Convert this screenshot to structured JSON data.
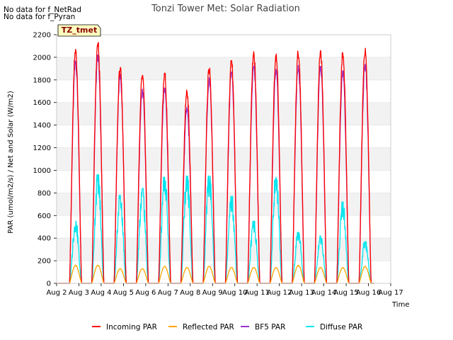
{
  "notices": [
    "No data for f_NetRad",
    "No data for f_Pyran"
  ],
  "chart_data": {
    "type": "line",
    "title": "Tonzi Tower Met: Solar Radiation",
    "xlabel": "Time",
    "ylabel": "PAR (umol/m2/s) / Net and Solar (W/m2)",
    "ylim": [
      0,
      2200
    ],
    "xlim": [
      2,
      17
    ],
    "yticks": [
      0,
      200,
      400,
      600,
      800,
      1000,
      1200,
      1400,
      1600,
      1800,
      2000,
      2200
    ],
    "xticks": [
      {
        "value": 2,
        "label": "Aug 2"
      },
      {
        "value": 3,
        "label": "Aug 3"
      },
      {
        "value": 4,
        "label": "Aug 4"
      },
      {
        "value": 5,
        "label": "Aug 5"
      },
      {
        "value": 6,
        "label": "Aug 6"
      },
      {
        "value": 7,
        "label": "Aug 7"
      },
      {
        "value": 8,
        "label": "Aug 8"
      },
      {
        "value": 9,
        "label": "Aug 9"
      },
      {
        "value": 10,
        "label": "Aug 10"
      },
      {
        "value": 11,
        "label": "Aug 11"
      },
      {
        "value": 12,
        "label": "Aug 12"
      },
      {
        "value": 13,
        "label": "Aug 13"
      },
      {
        "value": 14,
        "label": "Aug 14"
      },
      {
        "value": 15,
        "label": "Aug 15"
      },
      {
        "value": 16,
        "label": "Aug 16"
      },
      {
        "value": 17,
        "label": "Aug 17"
      }
    ],
    "annotation": "TZ_tmet",
    "day_peak_x": [
      2.85,
      3.85,
      4.85,
      5.85,
      6.85,
      7.85,
      8.85,
      9.85,
      10.85,
      11.85,
      12.85,
      13.85,
      14.85,
      15.85
    ],
    "series": [
      {
        "name": "Incoming PAR",
        "color": "#ff0000",
        "peaks": [
          2070,
          2130,
          1910,
          1840,
          1860,
          1710,
          1910,
          1970,
          2050,
          2030,
          2060,
          2060,
          2040,
          2080
        ]
      },
      {
        "name": "Reflected PAR",
        "color": "#ffa500",
        "peaks": [
          160,
          160,
          130,
          130,
          150,
          140,
          150,
          140,
          140,
          140,
          160,
          140,
          140,
          150
        ]
      },
      {
        "name": "BF5 PAR",
        "color": "#9932cc",
        "peaks": [
          1970,
          2020,
          1850,
          1720,
          1740,
          1560,
          1820,
          1870,
          1950,
          1900,
          1930,
          1920,
          1880,
          1950
        ]
      },
      {
        "name": "Diffuse PAR",
        "color": "#00e5ee",
        "peaks": [
          550,
          960,
          780,
          840,
          940,
          950,
          950,
          770,
          550,
          940,
          450,
          420,
          720,
          370
        ]
      }
    ],
    "grid_bands": true
  }
}
